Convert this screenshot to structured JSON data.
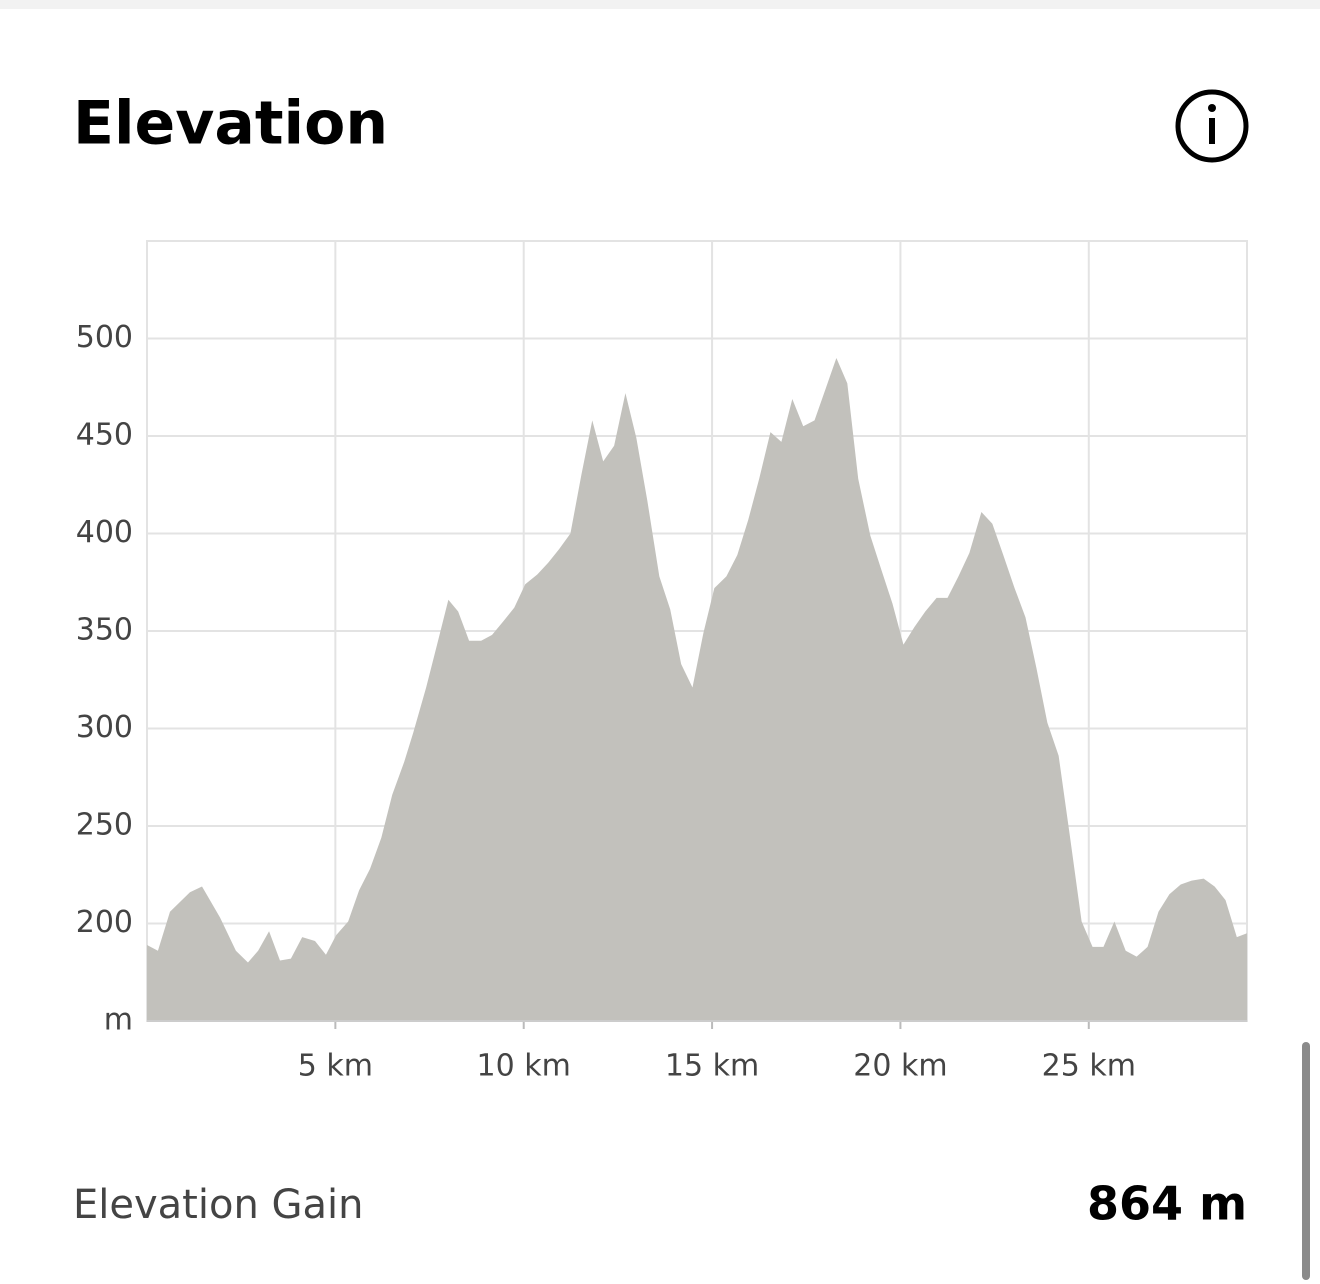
{
  "header": {
    "title": "Elevation"
  },
  "chart_data": {
    "type": "area",
    "color": "#c2c1bc",
    "grid": true,
    "x": [
      0,
      0.29,
      0.61,
      1.14,
      1.46,
      1.94,
      2.36,
      2.68,
      2.95,
      3.24,
      3.53,
      3.82,
      4.12,
      4.46,
      4.75,
      5.02,
      5.34,
      5.63,
      5.92,
      6.22,
      6.51,
      6.83,
      7.07,
      7.41,
      7.7,
      8.0,
      8.26,
      8.55,
      8.87,
      9.16,
      9.46,
      9.75,
      10.04,
      10.36,
      10.65,
      10.94,
      11.24,
      11.53,
      11.82,
      12.11,
      12.4,
      12.7,
      12.99,
      13.28,
      13.6,
      13.89,
      14.18,
      14.48,
      14.77,
      15.06,
      15.38,
      15.67,
      15.96,
      16.25,
      16.55,
      16.84,
      17.13,
      17.42,
      17.72,
      18.01,
      18.3,
      18.59,
      18.88,
      19.2,
      19.5,
      19.79,
      20.08,
      20.37,
      20.66,
      20.96,
      21.25,
      21.54,
      21.83,
      22.15,
      22.44,
      22.73,
      23.03,
      23.32,
      23.61,
      23.9,
      24.2,
      24.49,
      24.81,
      25.1,
      25.39,
      25.68,
      25.98,
      26.27,
      26.56,
      26.85,
      27.14,
      27.44,
      27.73,
      28.05,
      28.34,
      28.63,
      28.93,
      29.2
    ],
    "values": [
      189,
      186,
      206,
      216,
      219,
      203,
      186,
      180,
      186,
      196,
      181,
      182,
      193,
      191,
      184,
      194,
      201,
      217,
      228,
      244,
      266,
      283,
      298,
      321,
      343,
      366,
      360,
      345,
      345,
      348,
      355,
      362,
      374,
      379,
      385,
      392,
      400,
      430,
      458,
      437,
      445,
      472,
      449,
      417,
      378,
      361,
      333,
      321,
      349,
      372,
      378,
      389,
      407,
      428,
      452,
      447,
      469,
      455,
      458,
      474,
      490,
      477,
      428,
      399,
      381,
      364,
      343,
      352,
      360,
      367,
      367,
      378,
      390,
      411,
      405,
      389,
      372,
      357,
      331,
      303,
      286,
      246,
      201,
      188,
      188,
      201,
      186,
      183,
      188,
      206,
      215,
      220,
      222,
      223,
      219,
      212,
      193,
      195
    ],
    "xlim": [
      0,
      29.2
    ],
    "ylim": [
      150,
      550
    ],
    "xticks": [
      {
        "value": 5,
        "label": "5 km"
      },
      {
        "value": 10,
        "label": "10 km"
      },
      {
        "value": 15,
        "label": "15 km"
      },
      {
        "value": 20,
        "label": "20 km"
      },
      {
        "value": 25,
        "label": "25 km"
      }
    ],
    "yticks": [
      {
        "value": 150,
        "label": "m"
      },
      200,
      250,
      300,
      350,
      400,
      450,
      500
    ]
  },
  "stats": {
    "label": "Elevation Gain",
    "value": "864 m"
  }
}
